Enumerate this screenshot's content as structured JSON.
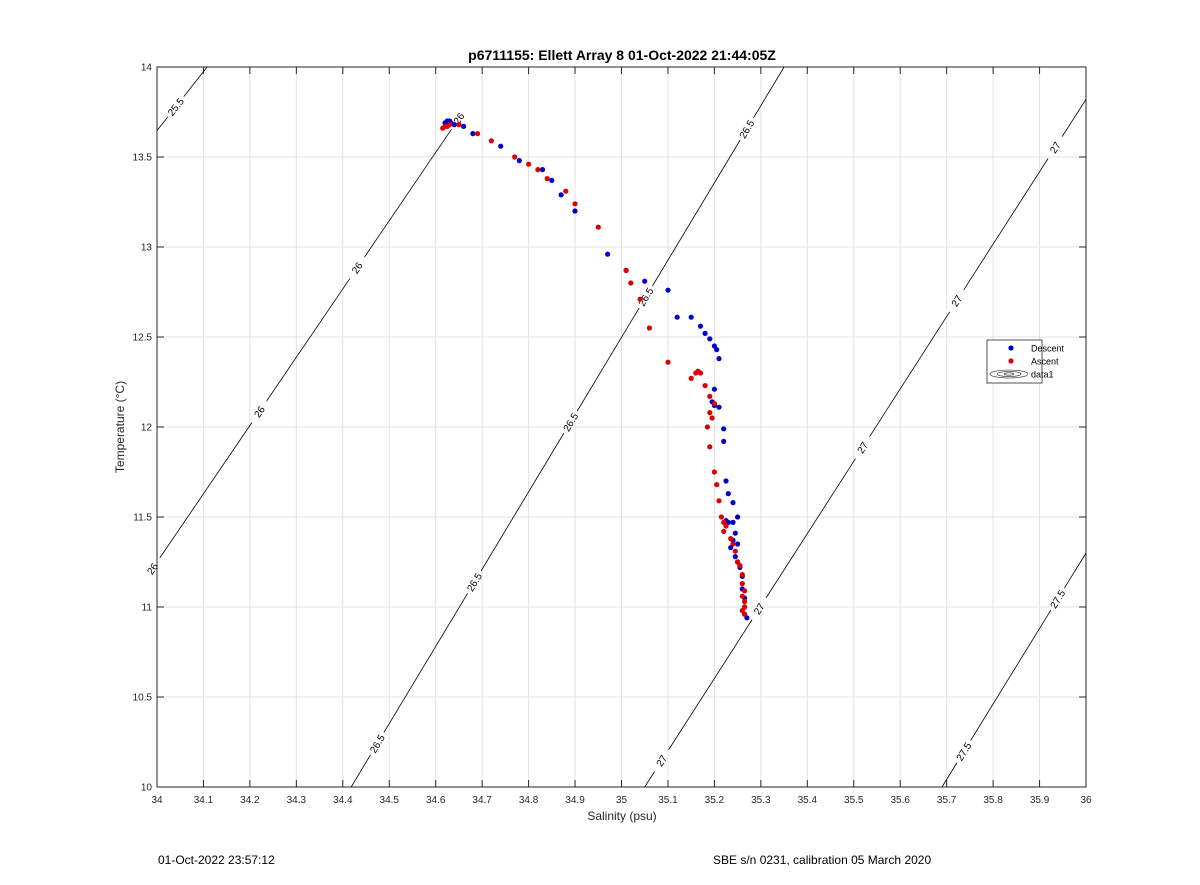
{
  "chart_data": {
    "type": "scatter",
    "title": "p6711155: Ellett Array 8 01-Oct-2022 21:44:05Z",
    "xlabel": "Salinity (psu)",
    "ylabel": "Temperature (°C)",
    "xlim": [
      34,
      36
    ],
    "ylim": [
      10,
      14
    ],
    "xticks": [
      34,
      34.1,
      34.2,
      34.3,
      34.4,
      34.5,
      34.6,
      34.7,
      34.8,
      34.9,
      35,
      35.1,
      35.2,
      35.3,
      35.4,
      35.5,
      35.6,
      35.7,
      35.8,
      35.9,
      36
    ],
    "xtick_labels": [
      "34",
      "34.1",
      "34.2",
      "34.3",
      "34.4",
      "34.5",
      "34.6",
      "34.7",
      "34.8",
      "34.9",
      "35",
      "35.1",
      "35.2",
      "35.3",
      "35.4",
      "35.5",
      "35.6",
      "35.7",
      "35.8",
      "35.9",
      "36"
    ],
    "yticks": [
      10,
      10.5,
      11,
      11.5,
      12,
      12.5,
      13,
      13.5,
      14
    ],
    "ytick_labels": [
      "10",
      "10.5",
      "11",
      "11.5",
      "12",
      "12.5",
      "13",
      "13.5",
      "14"
    ],
    "grid": true,
    "legend_position": "right",
    "legend": [
      "Descent",
      "Ascent",
      "data1"
    ],
    "contours": [
      {
        "level": "25.5",
        "p1": [
          33.955,
          13.5
        ],
        "p2": [
          34.108,
          14.0
        ],
        "labels": [
          {
            "text": "25.5",
            "s": 34.04,
            "t": 13.78
          }
        ]
      },
      {
        "level": "26",
        "p1": [
          33.95,
          11.06
        ],
        "p2": [
          34.646,
          13.7
        ],
        "labels": [
          {
            "text": "26",
            "s": 34.02,
            "t": 11.16
          },
          {
            "text": "26",
            "s": 34.24,
            "t": 12.05
          },
          {
            "text": "26",
            "s": 34.45,
            "t": 12.85
          },
          {
            "text": "26",
            "s": 34.675,
            "t": 13.67
          }
        ]
      },
      {
        "level": "26.5",
        "p1": [
          34.418,
          10.0
        ],
        "p2": [
          35.35,
          14.0
        ],
        "labels": [
          {
            "text": "26.5",
            "s": 34.5,
            "t": 10.2
          },
          {
            "text": "26.5",
            "s": 34.74,
            "t": 11.05
          },
          {
            "text": "26.5",
            "s": 34.94,
            "t": 11.95
          },
          {
            "text": "26.5",
            "s": 35.08,
            "t": 12.68
          },
          {
            "text": "26.5",
            "s": 35.305,
            "t": 13.6
          }
        ]
      },
      {
        "level": "27",
        "p1": [
          35.05,
          10.0
        ],
        "p2": [
          36.0,
          13.82
        ],
        "labels": [
          {
            "text": "27",
            "s": 35.09,
            "t": 10.14
          },
          {
            "text": "27",
            "s": 35.29,
            "t": 11.0
          },
          {
            "text": "27",
            "s": 35.51,
            "t": 11.9
          },
          {
            "text": "27",
            "s": 35.71,
            "t": 12.72
          },
          {
            "text": "27",
            "s": 35.935,
            "t": 13.55
          }
        ]
      },
      {
        "level": "27.5",
        "p1": [
          35.69,
          10.0
        ],
        "p2": [
          36.0,
          11.3
        ],
        "labels": [
          {
            "text": "27.5",
            "s": 35.735,
            "t": 10.2
          },
          {
            "text": "27.5",
            "s": 35.935,
            "t": 11.05
          }
        ]
      }
    ],
    "series": [
      {
        "name": "Descent",
        "color": "#0000cc",
        "x": [
          34.62,
          34.625,
          34.63,
          34.628,
          34.633,
          34.64,
          34.66,
          34.68,
          34.74,
          34.78,
          34.83,
          34.85,
          34.87,
          34.9,
          34.97,
          35.01,
          35.05,
          35.1,
          35.12,
          35.15,
          35.17,
          35.18,
          35.19,
          35.2,
          35.205,
          35.21,
          35.2,
          35.195,
          35.2,
          35.21,
          35.22,
          35.22,
          35.225,
          35.23,
          35.24,
          35.225,
          35.23,
          35.24,
          35.25,
          35.245,
          35.24,
          35.235,
          35.25,
          35.245,
          35.25,
          35.255,
          35.26,
          35.26,
          35.265,
          35.265,
          35.265,
          35.27
        ],
        "y": [
          13.69,
          13.7,
          13.7,
          13.69,
          13.69,
          13.68,
          13.67,
          13.63,
          13.56,
          13.48,
          13.43,
          13.37,
          13.29,
          13.2,
          12.96,
          12.87,
          12.81,
          12.76,
          12.61,
          12.61,
          12.56,
          12.52,
          12.49,
          12.45,
          12.43,
          12.38,
          12.21,
          12.14,
          12.12,
          12.11,
          11.99,
          11.92,
          11.7,
          11.63,
          11.58,
          11.48,
          11.47,
          11.47,
          11.5,
          11.41,
          11.37,
          11.33,
          11.35,
          11.28,
          11.25,
          11.22,
          11.17,
          11.1,
          11.05,
          11.0,
          10.96,
          10.94
        ]
      },
      {
        "name": "Ascent",
        "color": "#dd0000",
        "x": [
          34.615,
          34.62,
          34.625,
          34.63,
          34.65,
          34.69,
          34.72,
          34.77,
          34.8,
          34.82,
          34.84,
          34.88,
          34.9,
          34.95,
          35.01,
          35.02,
          35.04,
          35.06,
          35.1,
          35.15,
          35.16,
          35.165,
          35.17,
          35.18,
          35.19,
          35.2,
          35.19,
          35.195,
          35.185,
          35.19,
          35.2,
          35.205,
          35.21,
          35.215,
          35.22,
          35.225,
          35.22,
          35.235,
          35.24,
          35.245,
          35.25,
          35.255,
          35.26,
          35.26,
          35.265,
          35.26,
          35.265,
          35.265,
          35.26,
          35.265
        ],
        "y": [
          13.66,
          13.67,
          13.67,
          13.68,
          13.68,
          13.63,
          13.59,
          13.5,
          13.46,
          13.43,
          13.38,
          13.31,
          13.24,
          13.11,
          12.87,
          12.8,
          12.71,
          12.55,
          12.36,
          12.27,
          12.3,
          12.31,
          12.3,
          12.23,
          12.17,
          12.13,
          12.08,
          12.05,
          12.0,
          11.89,
          11.75,
          11.68,
          11.59,
          11.5,
          11.47,
          11.45,
          11.42,
          11.38,
          11.35,
          11.31,
          11.25,
          11.23,
          11.18,
          11.13,
          11.09,
          11.06,
          11.03,
          11.0,
          10.98,
          10.96
        ]
      }
    ]
  },
  "footer": {
    "timestamp": "01-Oct-2022 23:57:12",
    "calibration": "SBE s/n 0231, calibration 05 March 2020"
  }
}
